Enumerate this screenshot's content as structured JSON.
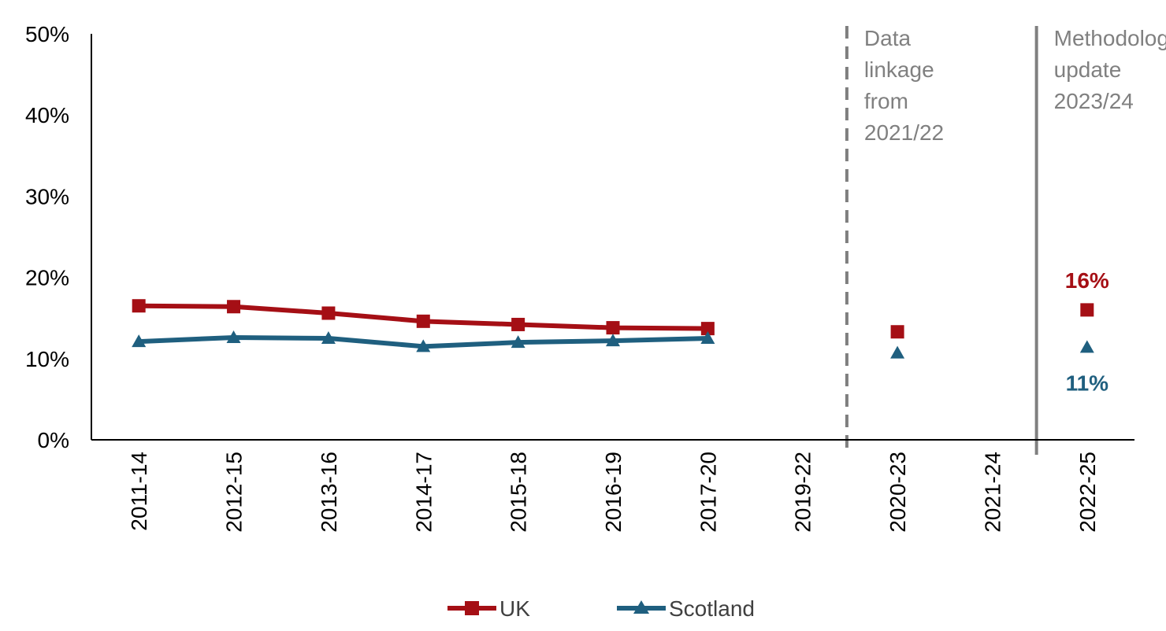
{
  "chart_data": {
    "type": "line",
    "categories": [
      "2011-14",
      "2012-15",
      "2013-16",
      "2014-17",
      "2015-18",
      "2016-19",
      "2017-20",
      "2019-22",
      "2020-23",
      "2021-24",
      "2022-25"
    ],
    "ylim": [
      0,
      50
    ],
    "y_ticks": [
      "0%",
      "10%",
      "20%",
      "30%",
      "40%",
      "50%"
    ],
    "grid": false,
    "legend_position": "bottom",
    "series": [
      {
        "name": "UK",
        "color": "#a50f15",
        "marker": "square",
        "values": [
          16.5,
          16.4,
          15.6,
          14.6,
          14.2,
          13.8,
          13.7,
          null,
          13.3,
          null,
          16
        ]
      },
      {
        "name": "Scotland",
        "color": "#1f5f7f",
        "marker": "triangle",
        "values": [
          12.1,
          12.6,
          12.5,
          11.5,
          12.0,
          12.2,
          12.5,
          null,
          10.7,
          null,
          11.4
        ]
      }
    ],
    "data_labels": [
      {
        "series": "UK",
        "category": "2022-25",
        "text": "16%",
        "color": "#a50f15"
      },
      {
        "series": "Scotland",
        "category": "2022-25",
        "text": "11%",
        "color": "#1f5f7f"
      }
    ],
    "annotations": [
      {
        "after_category": "2019-22",
        "style": "dashed",
        "color": "#7f7f7f",
        "lines": [
          "Data",
          "linkage",
          "from",
          "2021/22"
        ]
      },
      {
        "after_category": "2021-24",
        "style": "solid",
        "color": "#808080",
        "lines": [
          "Methodology",
          "update",
          "2023/24"
        ]
      }
    ]
  }
}
